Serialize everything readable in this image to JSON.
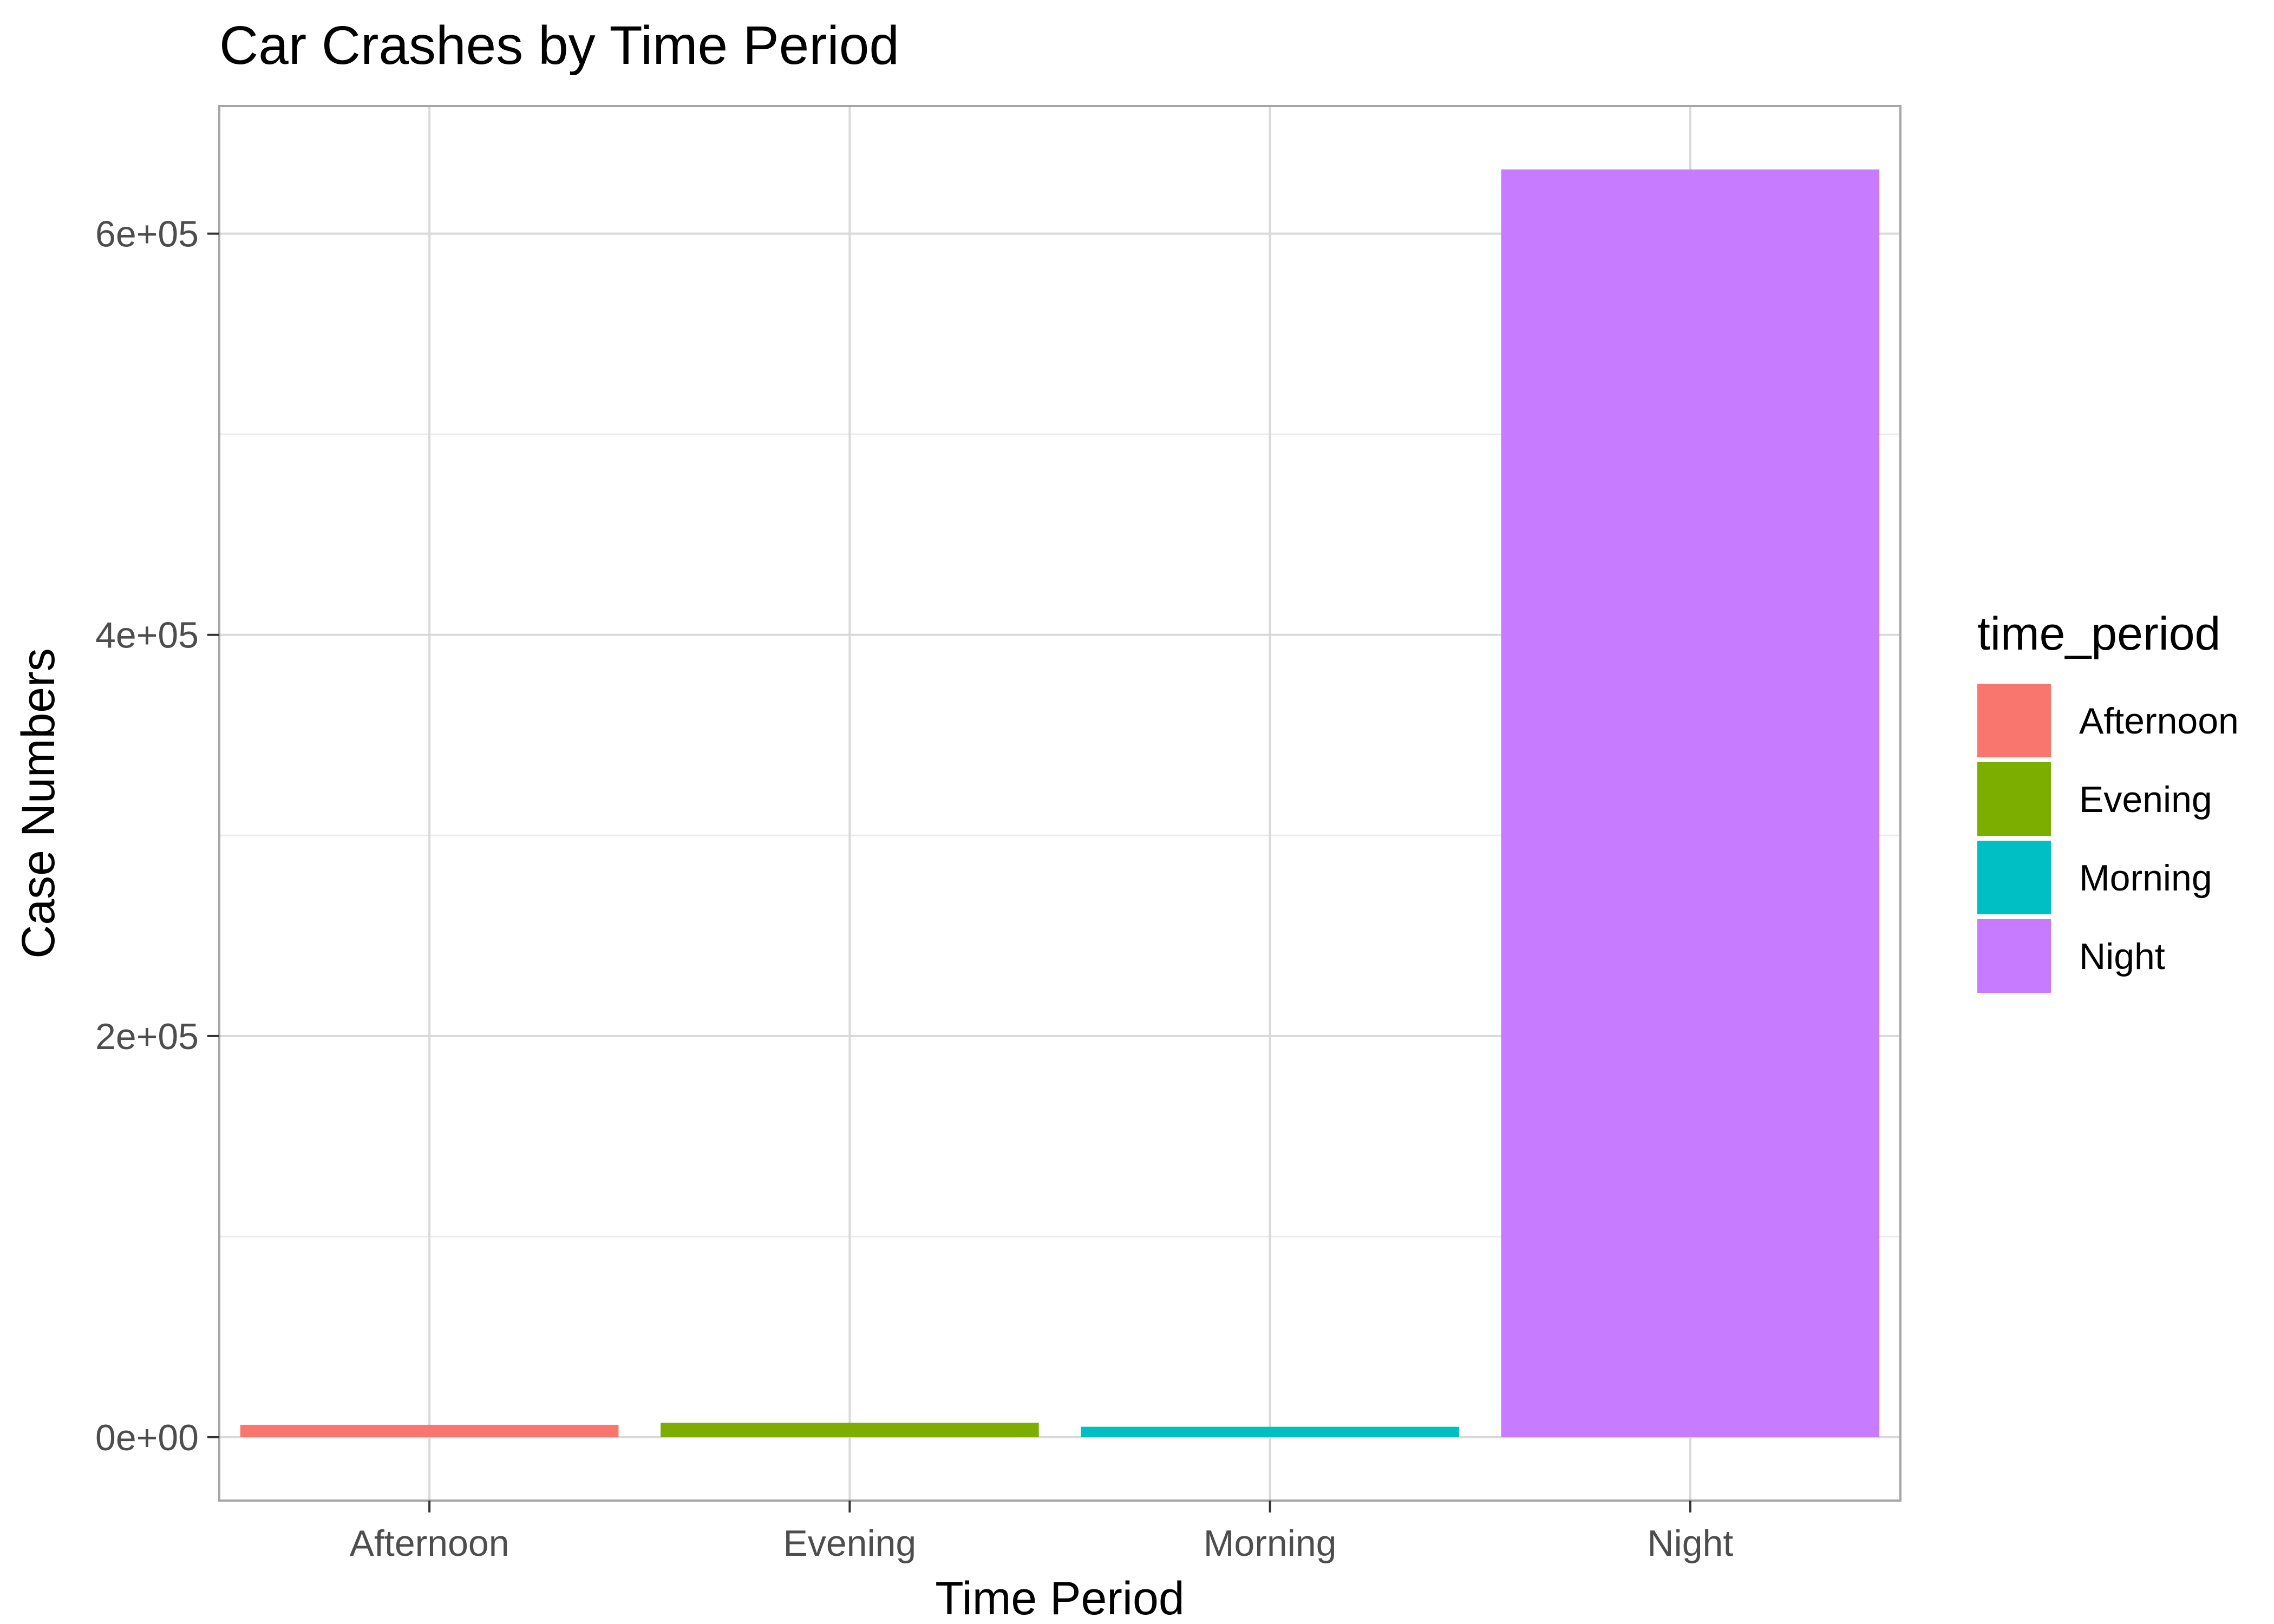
{
  "chart_data": {
    "type": "bar",
    "title": "Car Crashes by Time Period",
    "xlabel": "Time Period",
    "ylabel": "Case Numbers",
    "categories": [
      "Afternoon",
      "Evening",
      "Morning",
      "Night"
    ],
    "values": [
      6200,
      7200,
      5200,
      632000
    ],
    "colors": [
      "#F8766D",
      "#7CAE00",
      "#00BFC4",
      "#C77CFF"
    ],
    "ylim": [
      -31600,
      663600
    ],
    "y_ticks": [
      0,
      200000,
      400000,
      600000
    ],
    "y_tick_labels": [
      "0e+00",
      "2e+05",
      "4e+05",
      "6e+05"
    ],
    "y_minor_ticks": [
      100000,
      300000,
      500000
    ],
    "grid": true,
    "legend": {
      "title": "time_period",
      "position": "right",
      "entries": [
        "Afternoon",
        "Evening",
        "Morning",
        "Night"
      ]
    }
  }
}
